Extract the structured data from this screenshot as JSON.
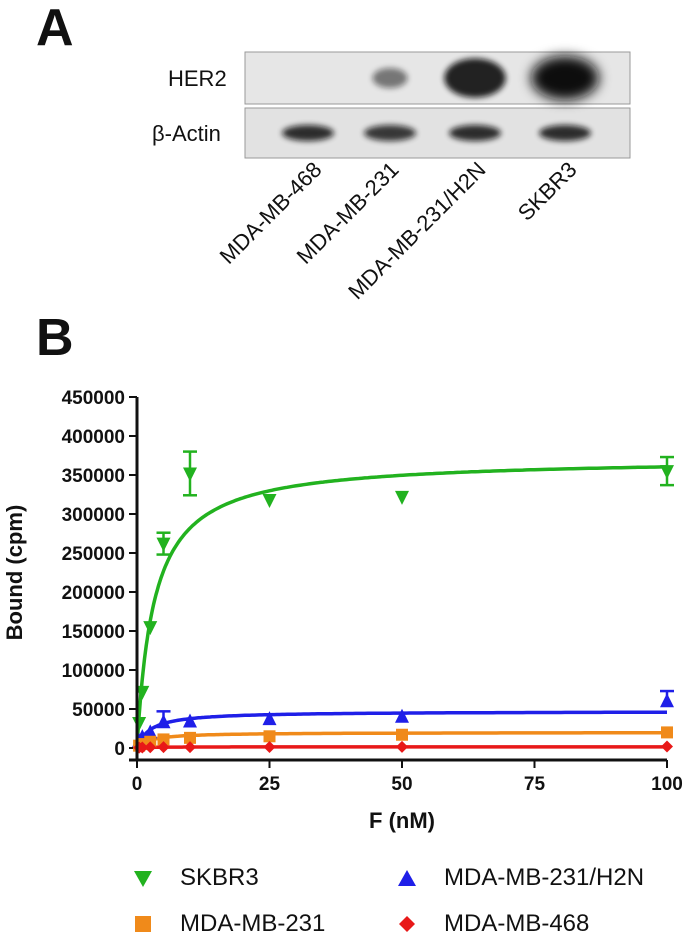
{
  "panel_a": {
    "letter": "A",
    "row_labels": [
      "HER2",
      "β-Actin"
    ],
    "lane_labels": [
      "MDA-MB-468",
      "MDA-MB-231",
      "MDA-MB-231/H2N",
      "SKBR3"
    ],
    "her2_intensity": [
      0,
      0.25,
      0.85,
      1.0
    ],
    "actin_intensity": [
      0.85,
      0.8,
      0.85,
      0.85
    ]
  },
  "panel_b": {
    "letter": "B"
  },
  "chart_data": {
    "type": "scatter",
    "xlabel": "F (nM)",
    "ylabel": "Bound (cpm)",
    "xlim": [
      0,
      100
    ],
    "ylim": [
      0,
      450000
    ],
    "xticks": [
      0,
      25,
      50,
      75,
      100
    ],
    "yticks": [
      0,
      50000,
      100000,
      150000,
      200000,
      250000,
      300000,
      350000,
      400000,
      450000
    ],
    "series": [
      {
        "name": "SKBR3",
        "color": "#22b21f",
        "marker": "triangle-down",
        "x": [
          0.4,
          1,
          2.5,
          5,
          10,
          25,
          50,
          100
        ],
        "y": [
          32000,
          72000,
          155000,
          262000,
          352000,
          318000,
          322000,
          355000
        ],
        "err": [
          0,
          0,
          0,
          14000,
          28000,
          0,
          0,
          18000
        ],
        "fit": {
          "bmax": 372000,
          "kd": 3.2
        }
      },
      {
        "name": "MDA-MB-231/H2N",
        "color": "#1f1fe8",
        "marker": "triangle-up",
        "x": [
          0.4,
          1,
          2.5,
          5,
          10,
          25,
          50,
          100
        ],
        "y": [
          9000,
          14000,
          20000,
          33000,
          34000,
          37000,
          40000,
          60000
        ],
        "err": [
          0,
          0,
          0,
          14000,
          0,
          0,
          0,
          13000
        ],
        "fit": {
          "bmax": 47000,
          "kd": 2.5
        }
      },
      {
        "name": "MDA-MB-231",
        "color": "#f08a1a",
        "marker": "square",
        "x": [
          0.4,
          1,
          2.5,
          5,
          10,
          25,
          50,
          100
        ],
        "y": [
          3000,
          5000,
          8000,
          11000,
          13000,
          15000,
          17000,
          20000
        ],
        "err": [
          0,
          0,
          0,
          0,
          0,
          0,
          0,
          0
        ],
        "fit": {
          "bmax": 20000,
          "kd": 2.5
        }
      },
      {
        "name": "MDA-MB-468",
        "color": "#e81818",
        "marker": "diamond",
        "x": [
          0.4,
          1,
          2.5,
          5,
          10,
          25,
          50,
          100
        ],
        "y": [
          500,
          700,
          900,
          1100,
          1200,
          1300,
          1400,
          2000
        ],
        "err": [
          0,
          0,
          0,
          0,
          0,
          0,
          0,
          0
        ],
        "fit": {
          "bmax": 1500,
          "kd": 2.0
        }
      }
    ]
  },
  "legend": [
    {
      "label": "SKBR3",
      "marker": "triangle-down",
      "color": "#22b21f"
    },
    {
      "label": "MDA-MB-231/H2N",
      "marker": "triangle-up",
      "color": "#1f1fe8"
    },
    {
      "label": "MDA-MB-231",
      "marker": "square",
      "color": "#f08a1a"
    },
    {
      "label": "MDA-MB-468",
      "marker": "diamond",
      "color": "#e81818"
    }
  ]
}
